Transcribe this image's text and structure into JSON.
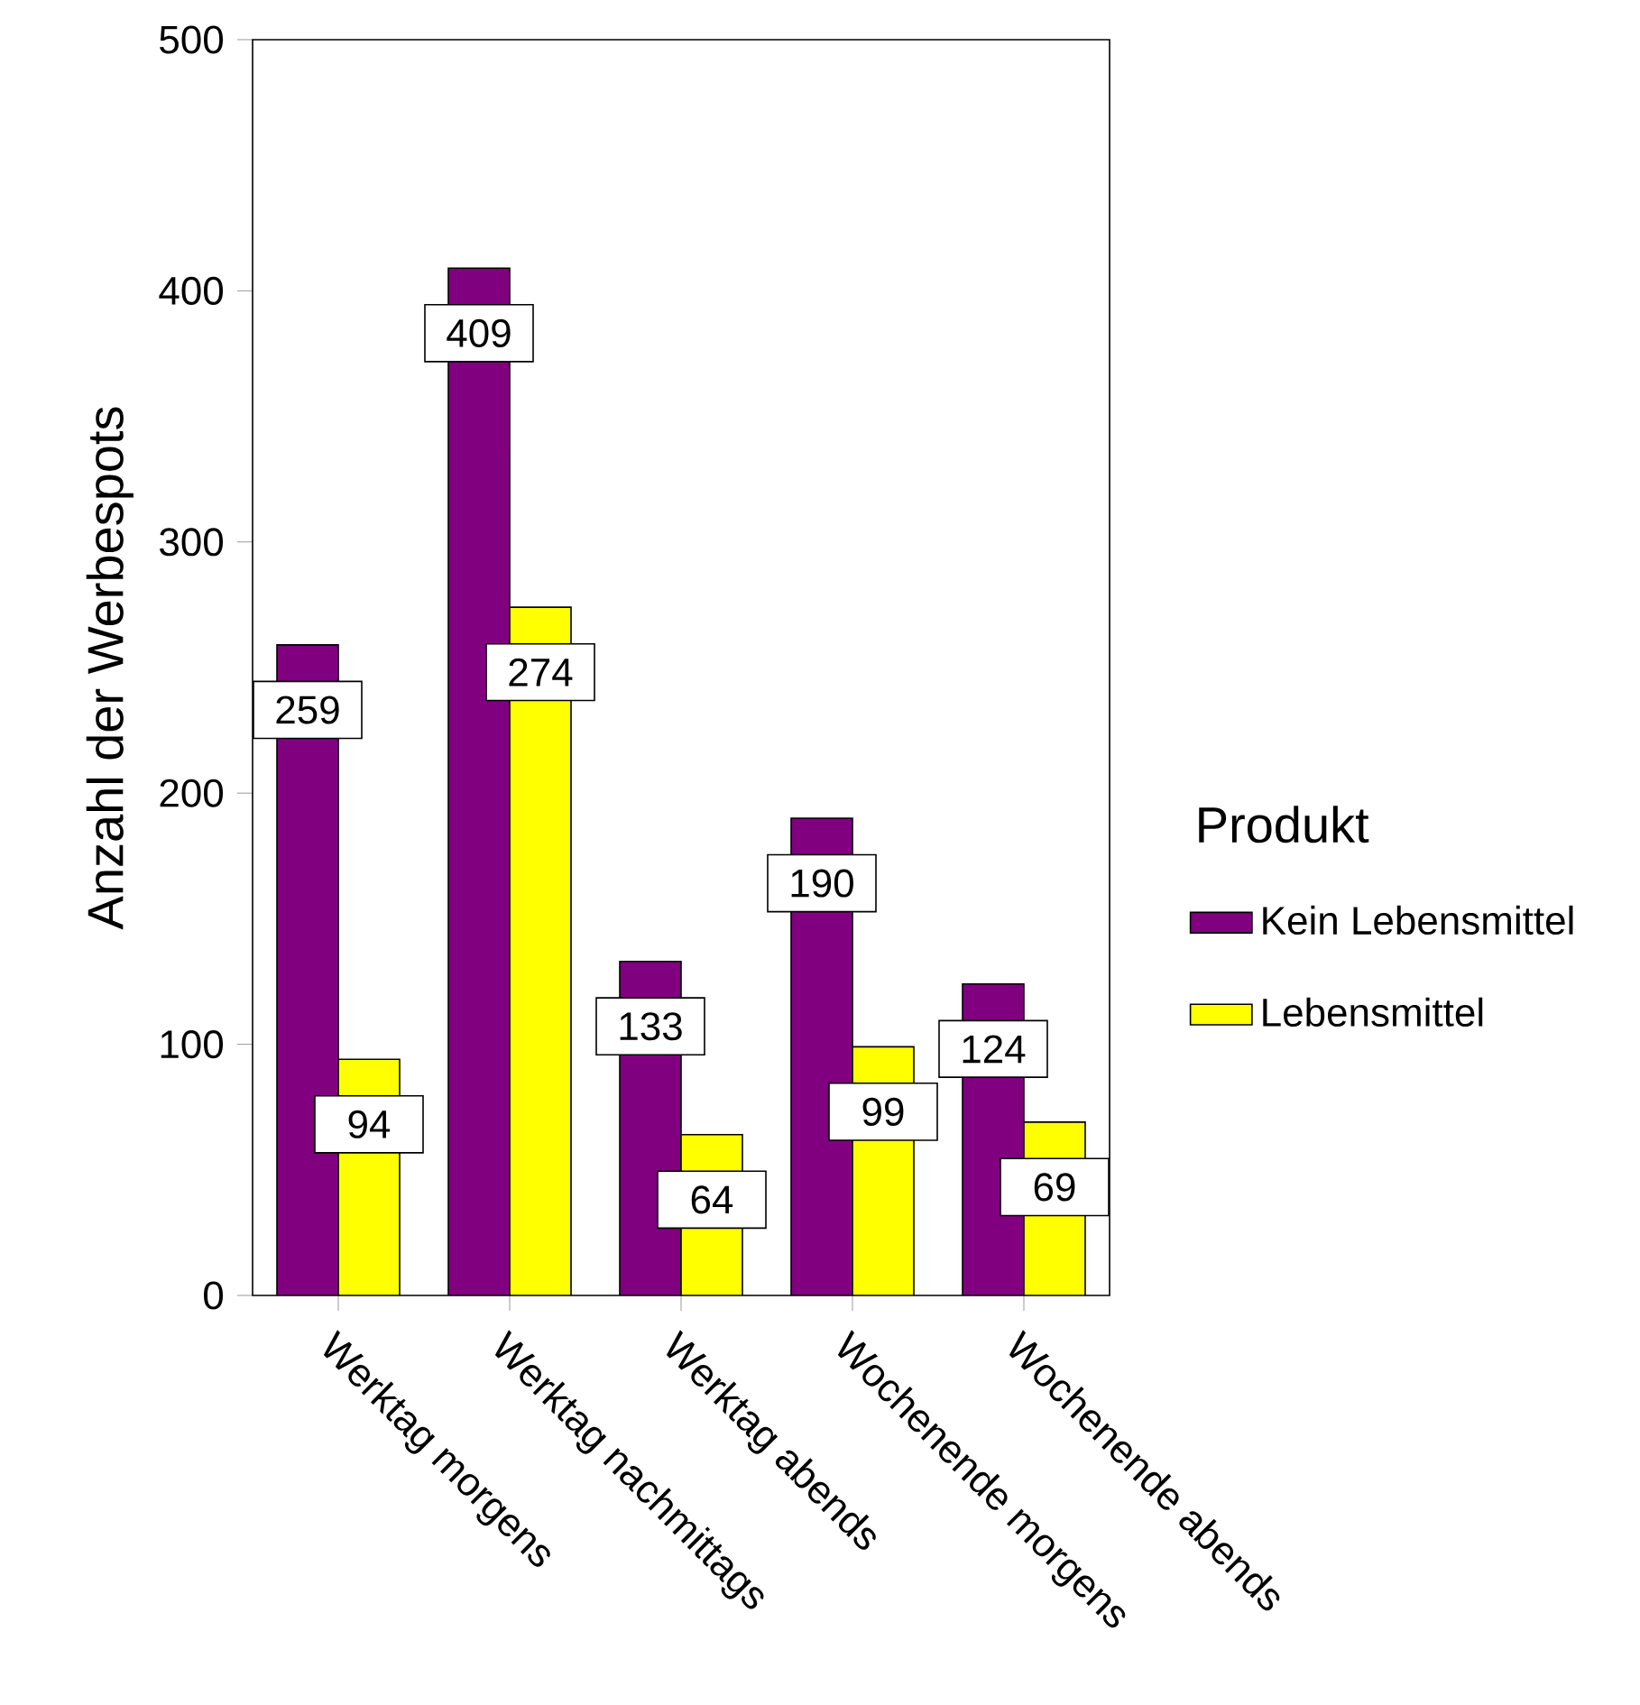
{
  "chart_data": {
    "type": "bar",
    "ylabel": "Anzahl der Werbespots",
    "legend_title": "Produkt",
    "categories": [
      "Werktag morgens",
      "Werktag nachmittags",
      "Werktag abends",
      "Wochenende morgens",
      "Wochenende abends"
    ],
    "series": [
      {
        "name": "Kein Lebensmittel",
        "color": "#800080",
        "values": [
          259,
          409,
          133,
          190,
          124
        ]
      },
      {
        "name": "Lebensmittel",
        "color": "#ffff00",
        "values": [
          94,
          274,
          64,
          99,
          69
        ]
      }
    ],
    "ylim": [
      0,
      500
    ],
    "yticks": [
      0,
      100,
      200,
      300,
      400,
      500
    ],
    "data_labels": true,
    "legend": "right",
    "grid": false
  }
}
